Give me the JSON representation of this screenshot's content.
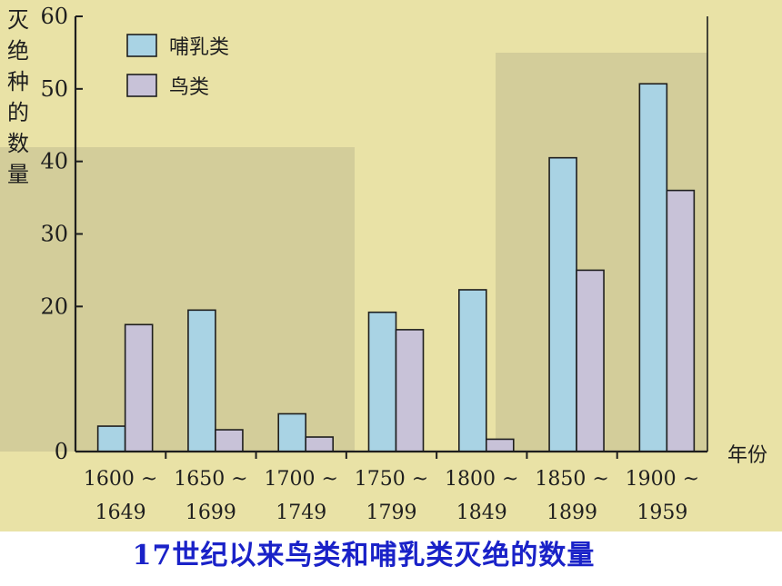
{
  "caption": "17世纪以来鸟类和哺乳类灭绝的数量",
  "colors": {
    "paper": "#e9e2a6",
    "shade": "#cbc595",
    "axis": "#1e1e1e",
    "mammal": "#a9d3e4",
    "bird": "#c8c2d8",
    "caption": "#1a22c8"
  },
  "chart_data": {
    "type": "bar",
    "ylabel": "灭绝种的数量",
    "xlabel": "年份",
    "ylim": [
      0,
      60
    ],
    "yticks": [
      "0",
      "20",
      "30",
      "40",
      "50",
      "60"
    ],
    "ytick_values": [
      0,
      20,
      30,
      40,
      50,
      60
    ],
    "categories": [
      "1600 ~ 1649",
      "1650 ~ 1699",
      "1700 ~ 1749",
      "1750 ~ 1799",
      "1800 ~ 1849",
      "1850 ~ 1899",
      "1900 ~ 1959"
    ],
    "category_lines": [
      [
        "1600 ~",
        "1649"
      ],
      [
        "1650 ~",
        "1699"
      ],
      [
        "1700 ~",
        "1749"
      ],
      [
        "1750 ~",
        "1799"
      ],
      [
        "1800 ~",
        "1849"
      ],
      [
        "1850 ~",
        "1899"
      ],
      [
        "1900 ~",
        "1959"
      ]
    ],
    "series": [
      {
        "name": "哺乳类",
        "values": [
          3.5,
          19.5,
          5.2,
          19.2,
          22.3,
          40.5,
          50.7
        ]
      },
      {
        "name": "鸟类",
        "values": [
          17.5,
          3.0,
          2.0,
          16.8,
          1.7,
          25.0,
          36.0
        ]
      }
    ],
    "legend_position": "top-left",
    "grid": false
  }
}
